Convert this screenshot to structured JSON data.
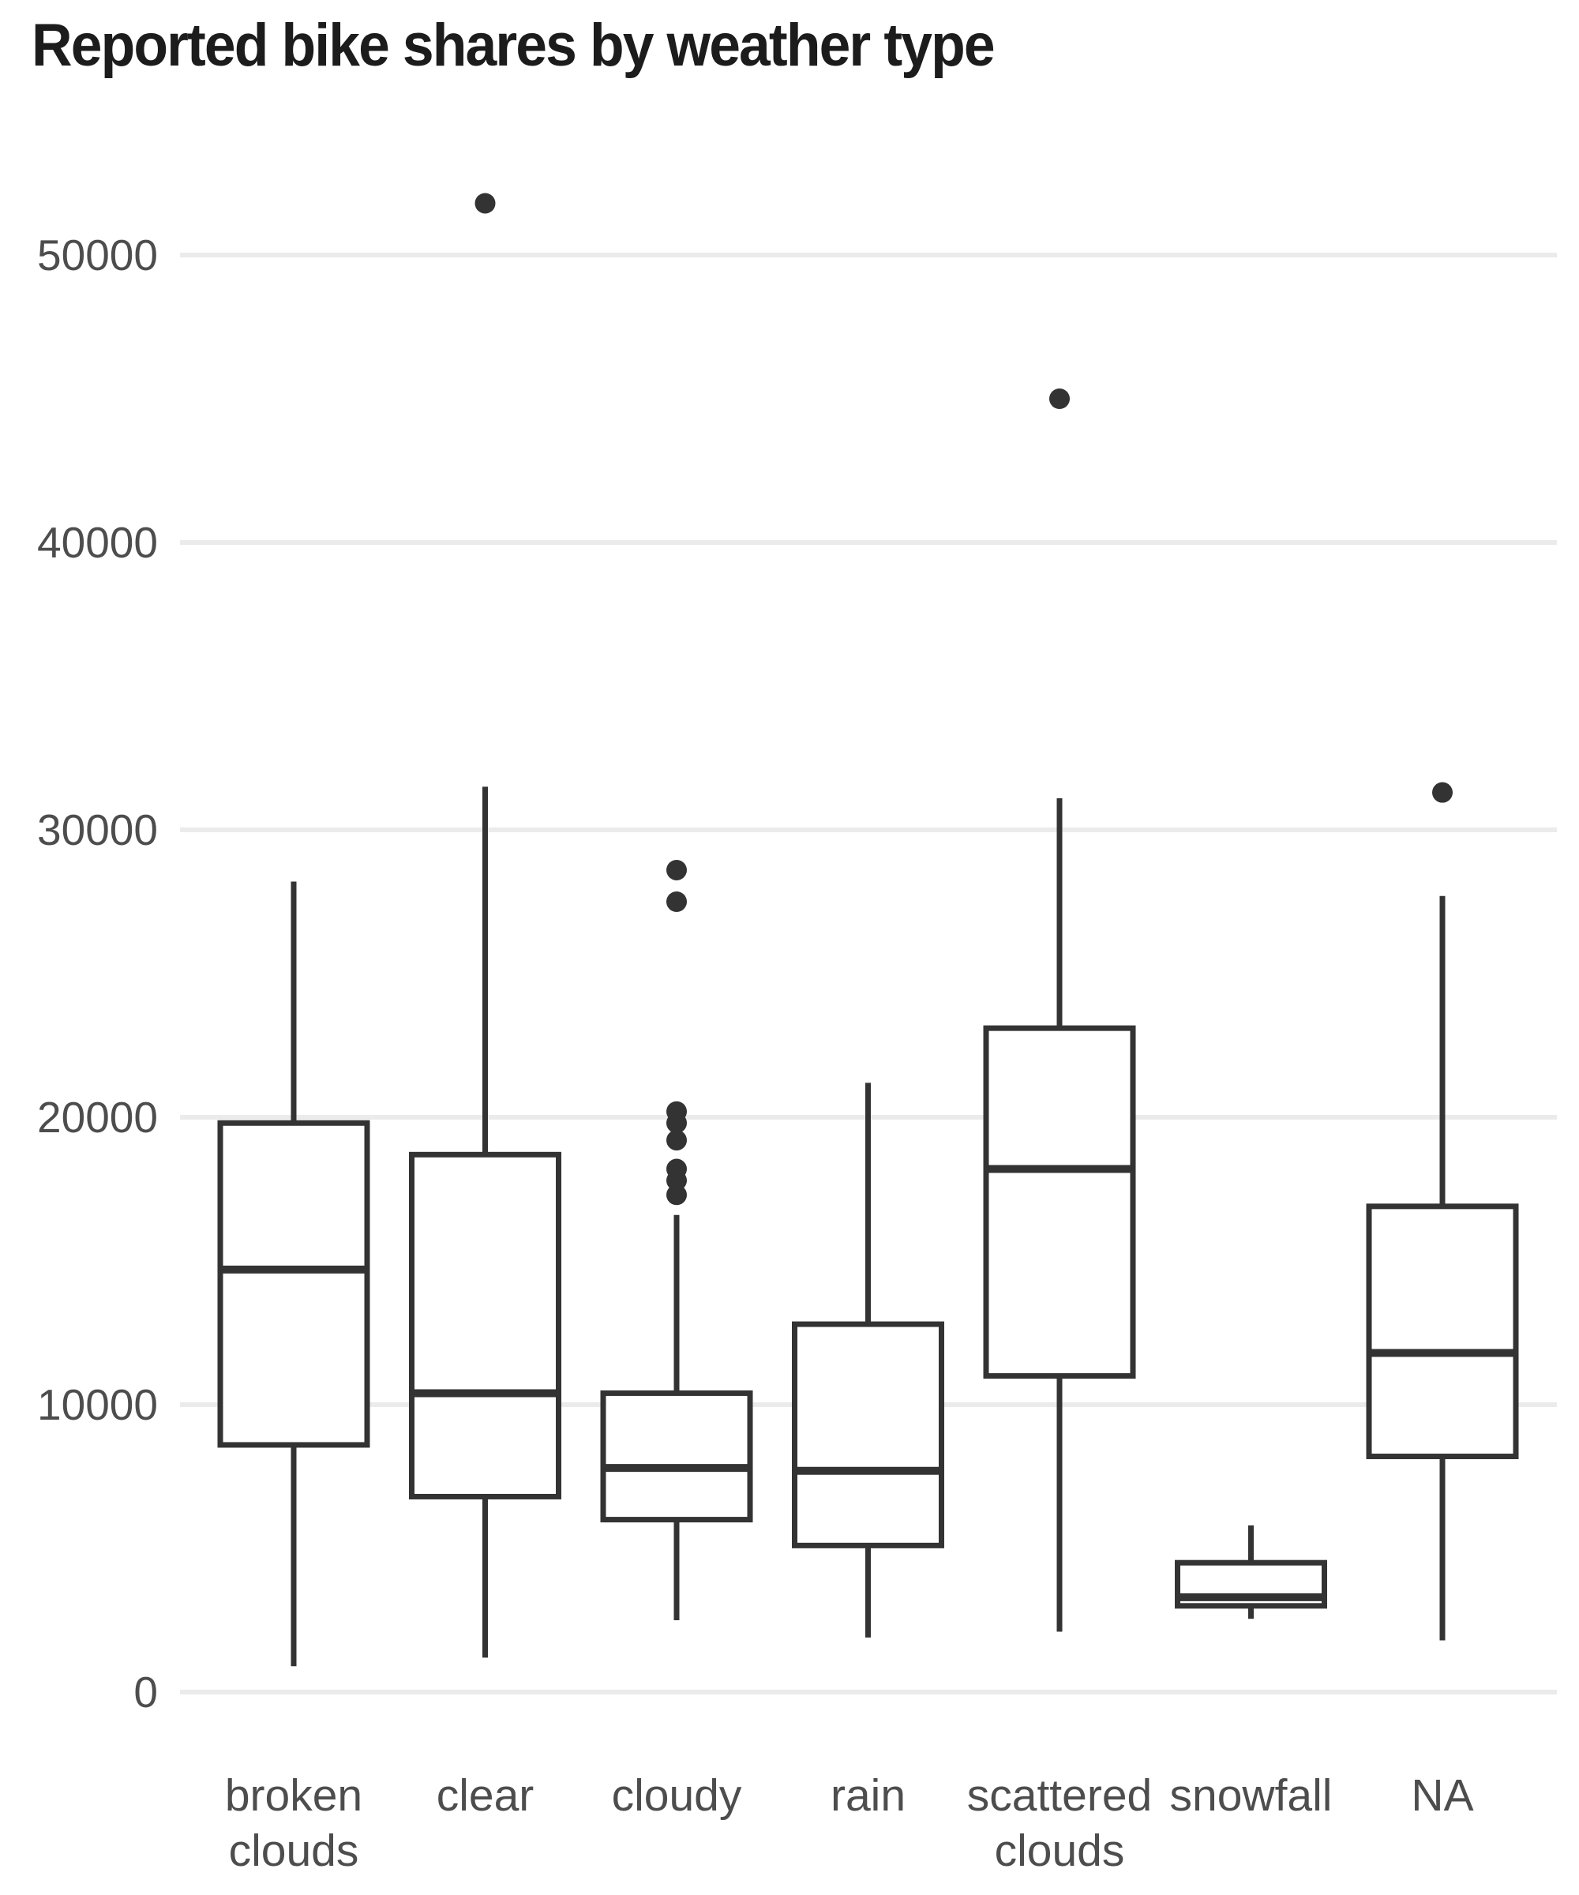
{
  "chart_data": {
    "type": "boxplot",
    "title": "Reported bike shares by weather type",
    "xlabel": "",
    "ylabel": "",
    "ylim": [
      0,
      53000
    ],
    "grid": "horizontal-only",
    "legend": "none",
    "y_ticks": [
      0,
      10000,
      20000,
      30000,
      40000,
      50000
    ],
    "y_tick_labels": [
      "0",
      "10000",
      "20000",
      "30000",
      "40000",
      "50000"
    ],
    "categories": [
      {
        "label": "broken clouds",
        "label_lines": [
          "broken",
          "clouds"
        ],
        "min": 900,
        "q1": 8600,
        "median": 14700,
        "q3": 19800,
        "max": 28200,
        "outliers": []
      },
      {
        "label": "clear",
        "label_lines": [
          "clear"
        ],
        "min": 1200,
        "q1": 6800,
        "median": 10400,
        "q3": 18700,
        "max": 31500,
        "outliers": [
          51800
        ]
      },
      {
        "label": "cloudy",
        "label_lines": [
          "cloudy"
        ],
        "min": 2500,
        "q1": 6000,
        "median": 7800,
        "q3": 10400,
        "max": 16600,
        "outliers": [
          17300,
          17800,
          18200,
          19200,
          19800,
          20200,
          27500,
          28600
        ]
      },
      {
        "label": "rain",
        "label_lines": [
          "rain"
        ],
        "min": 1900,
        "q1": 5100,
        "median": 7700,
        "q3": 12800,
        "max": 21200,
        "outliers": []
      },
      {
        "label": "scattered clouds",
        "label_lines": [
          "scattered",
          "clouds"
        ],
        "min": 2100,
        "q1": 11000,
        "median": 18200,
        "q3": 23100,
        "max": 31100,
        "outliers": [
          45000
        ]
      },
      {
        "label": "snowfall",
        "label_lines": [
          "snowfall"
        ],
        "min": 2550,
        "q1": 3000,
        "median": 3300,
        "q3": 4500,
        "max": 5800,
        "outliers": []
      },
      {
        "label": "NA",
        "label_lines": [
          "NA"
        ],
        "min": 1800,
        "q1": 8200,
        "median": 11800,
        "q3": 16900,
        "max": 27700,
        "outliers": [
          31300
        ]
      }
    ],
    "colors": {
      "box_stroke": "#333333",
      "box_fill": "#ffffff",
      "outlier_fill": "#333333",
      "gridline": "#ebebeb",
      "tick_label": "#4d4d4d",
      "title": "#1c1c1c",
      "background": "#ffffff"
    }
  }
}
